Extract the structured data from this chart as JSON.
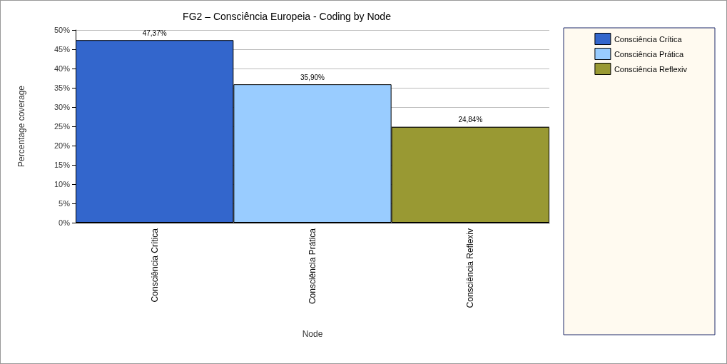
{
  "chart_data": {
    "type": "bar",
    "title": "FG2 – Consciência Europeia - Coding by Node",
    "xlabel": "Node",
    "ylabel": "Percentage coverage",
    "categories": [
      "Consciência Crítica",
      "Consciência Prática",
      "Consciência Reflexiv"
    ],
    "series": [
      {
        "name": "Consciência Crítica",
        "color": "#3366cc",
        "values": [
          47.37,
          null,
          null
        ],
        "value_labels": [
          "47,37%",
          null,
          null
        ]
      },
      {
        "name": "Consciência Prática",
        "color": "#99ccff",
        "values": [
          null,
          35.9,
          null
        ],
        "value_labels": [
          null,
          "35,90%",
          null
        ]
      },
      {
        "name": "Consciência Reflexiv",
        "color": "#999933",
        "values": [
          null,
          null,
          24.84
        ],
        "value_labels": [
          null,
          null,
          "24,84%"
        ]
      }
    ],
    "ylim": [
      0,
      50
    ],
    "yticks": [
      {
        "value": 0,
        "label": "0%"
      },
      {
        "value": 5,
        "label": "5%"
      },
      {
        "value": 10,
        "label": "10%"
      },
      {
        "value": 15,
        "label": "15%"
      },
      {
        "value": 20,
        "label": "20%"
      },
      {
        "value": 25,
        "label": "25%"
      },
      {
        "value": 30,
        "label": "30%"
      },
      {
        "value": 35,
        "label": "35%"
      },
      {
        "value": 40,
        "label": "40%"
      },
      {
        "value": 45,
        "label": "45%"
      },
      {
        "value": 50,
        "label": "50%"
      }
    ],
    "grid": "y",
    "legend": "right"
  }
}
